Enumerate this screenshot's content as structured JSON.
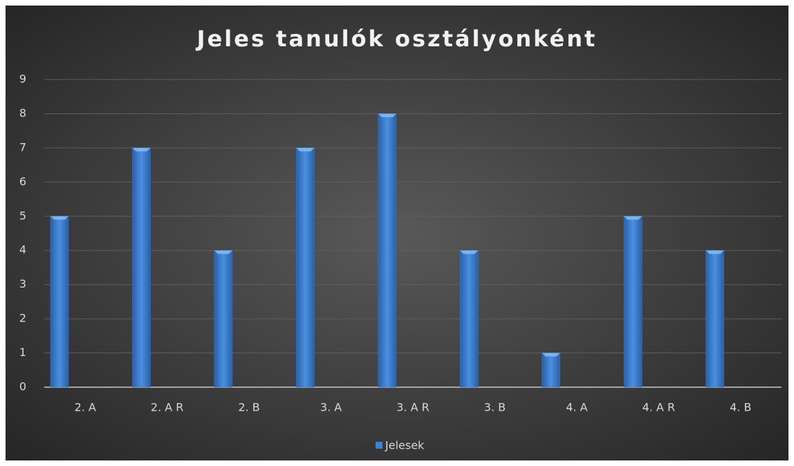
{
  "chart_data": {
    "type": "bar",
    "title": "Jeles tanulók osztályonként",
    "categories": [
      "2. A",
      "2. A R",
      "2. B",
      "3. A",
      "3. A R",
      "3. B",
      "4. A",
      "4. A R",
      "4. B"
    ],
    "series": [
      {
        "name": "Jelesek",
        "color": "#3f7fd4",
        "values": [
          5,
          7,
          4,
          7,
          8,
          4,
          1,
          5,
          4
        ]
      }
    ],
    "ylim": [
      0,
      9
    ],
    "yticks": [
      0,
      1,
      2,
      3,
      4,
      5,
      6,
      7,
      8,
      9
    ],
    "grid": true,
    "legend": "bottom"
  }
}
